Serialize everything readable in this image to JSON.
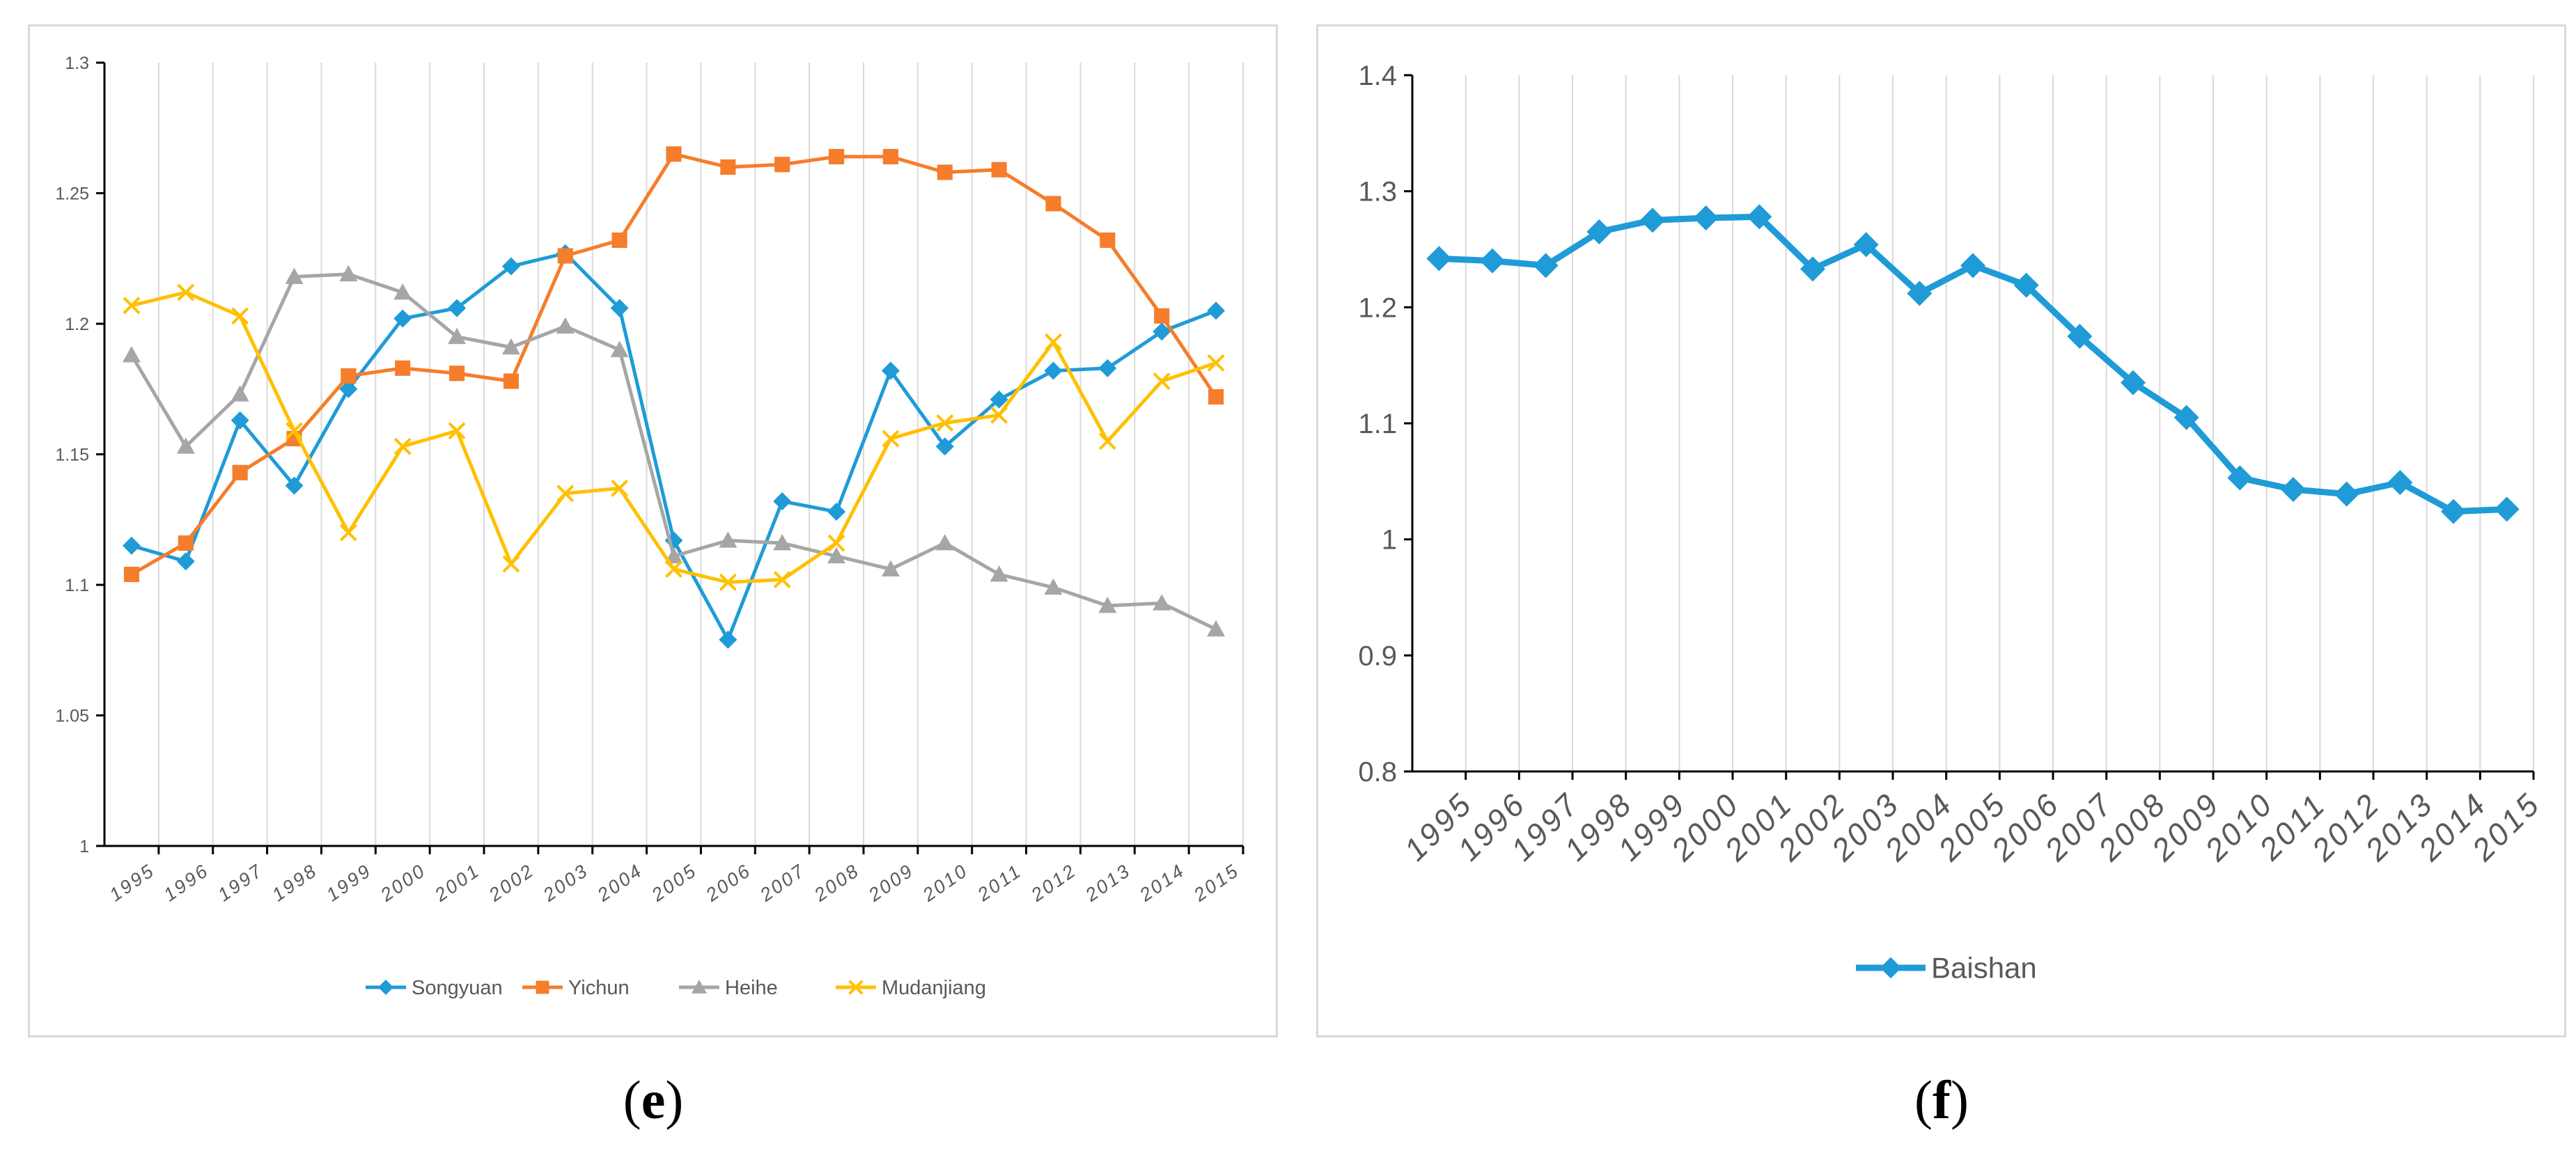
{
  "panels": [
    {
      "caption_prefix": "(",
      "caption_letter": "e",
      "caption_suffix": ")"
    },
    {
      "caption_prefix": "(",
      "caption_letter": "f",
      "caption_suffix": ")"
    }
  ],
  "chart_data": [
    {
      "type": "line",
      "title": "",
      "xlabel": "",
      "ylabel": "",
      "categories": [
        "1995",
        "1996",
        "1997",
        "1998",
        "1999",
        "2000",
        "2001",
        "2002",
        "2003",
        "2004",
        "2005",
        "2006",
        "2007",
        "2008",
        "2009",
        "2010",
        "2011",
        "2012",
        "2013",
        "2014",
        "2015"
      ],
      "ylim": [
        1,
        1.3
      ],
      "yticks": [
        "1",
        "1.05",
        "1.1",
        "1.15",
        "1.2",
        "1.25",
        "1.3"
      ],
      "legend_position": "bottom-center",
      "series": [
        {
          "name": "Songyuan",
          "color": "#1f9bd7",
          "marker": "diamond",
          "values": [
            1.115,
            1.109,
            1.163,
            1.138,
            1.175,
            1.202,
            1.206,
            1.222,
            1.227,
            1.206,
            1.117,
            1.079,
            1.132,
            1.128,
            1.182,
            1.153,
            1.171,
            1.182,
            1.183,
            1.197,
            1.205
          ]
        },
        {
          "name": "Yichun",
          "color": "#f57d2b",
          "marker": "square",
          "values": [
            1.104,
            1.116,
            1.143,
            1.156,
            1.18,
            1.183,
            1.181,
            1.178,
            1.226,
            1.232,
            1.265,
            1.26,
            1.261,
            1.264,
            1.264,
            1.258,
            1.259,
            1.246,
            1.232,
            1.203,
            1.172
          ]
        },
        {
          "name": "Heihe",
          "color": "#a6a6a6",
          "marker": "triangle",
          "values": [
            1.188,
            1.153,
            1.173,
            1.218,
            1.219,
            1.212,
            1.195,
            1.191,
            1.199,
            1.19,
            1.111,
            1.117,
            1.116,
            1.111,
            1.106,
            1.116,
            1.104,
            1.099,
            1.092,
            1.093,
            1.083
          ]
        },
        {
          "name": "Mudanjiang",
          "color": "#ffc000",
          "marker": "x",
          "values": [
            1.207,
            1.212,
            1.203,
            1.159,
            1.12,
            1.153,
            1.159,
            1.108,
            1.135,
            1.137,
            1.106,
            1.101,
            1.102,
            1.116,
            1.156,
            1.162,
            1.165,
            1.193,
            1.155,
            1.178,
            1.185
          ]
        }
      ]
    },
    {
      "type": "line",
      "title": "",
      "xlabel": "",
      "ylabel": "",
      "categories": [
        "1995",
        "1996",
        "1997",
        "1998",
        "1999",
        "2000",
        "2001",
        "2002",
        "2003",
        "2004",
        "2005",
        "2006",
        "2007",
        "2008",
        "2009",
        "2010",
        "2011",
        "2012",
        "2013",
        "2014",
        "2015"
      ],
      "ylim": [
        0.8,
        1.4
      ],
      "yticks": [
        "0.8",
        "0.9",
        "1",
        "1.1",
        "1.2",
        "1.3",
        "1.4"
      ],
      "legend_position": "bottom-center",
      "series": [
        {
          "name": "Baishan",
          "color": "#1f9bd7",
          "marker": "diamond",
          "values": [
            1.242,
            1.24,
            1.236,
            1.265,
            1.275,
            1.277,
            1.278,
            1.233,
            1.254,
            1.212,
            1.236,
            1.219,
            1.175,
            1.135,
            1.105,
            1.053,
            1.043,
            1.039,
            1.049,
            1.024,
            1.026
          ]
        }
      ]
    }
  ]
}
